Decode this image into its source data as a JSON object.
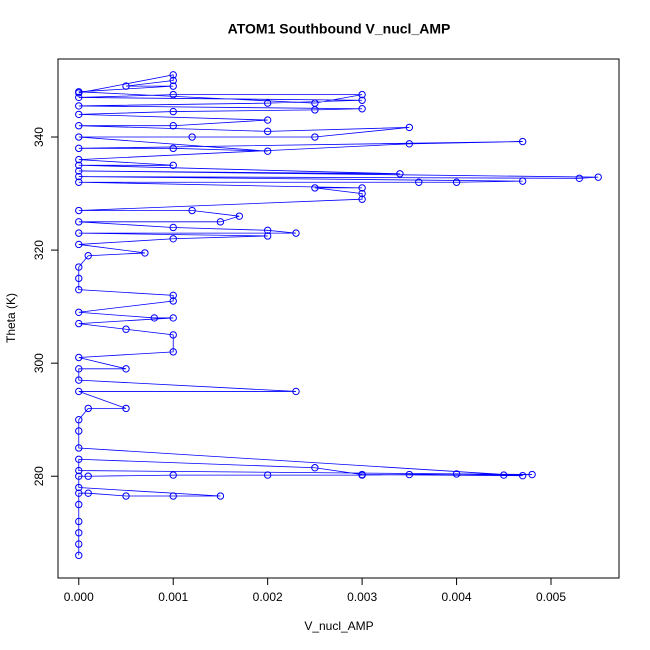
{
  "chart_data": {
    "type": "scatter",
    "title": "ATOM1 Southbound V_nucl_AMP",
    "x_label": "V_nucl_AMP",
    "y_label": "Theta (K)",
    "connect": true,
    "xlim": [
      -0.00022,
      0.00572
    ],
    "ylim": [
      262,
      353.8
    ],
    "xticks": [
      {
        "value": 0,
        "label": "0.000"
      },
      {
        "value": 0.001,
        "label": "0.001"
      },
      {
        "value": 0.002,
        "label": "0.002"
      },
      {
        "value": 0.003,
        "label": "0.003"
      },
      {
        "value": 0.004,
        "label": "0.004"
      },
      {
        "value": 0.005,
        "label": "0.005"
      }
    ],
    "yticks": [
      280,
      300,
      320,
      340
    ],
    "series": [
      {
        "color": "#0000ff",
        "x": [
          0,
          0,
          0,
          0,
          0,
          0,
          0.0001,
          0.0005,
          0.001,
          0.0015,
          0,
          0,
          0.0001,
          0.001,
          0.002,
          0.003,
          0.0035,
          0.004,
          0.0045,
          0.0048,
          0,
          0,
          0.0025,
          0.003,
          0.0047,
          0,
          0,
          0,
          0.0001,
          0.0005,
          0,
          0.0023,
          0,
          0,
          0.0005,
          0,
          0.001,
          0.001,
          0.0005,
          0,
          0.001,
          0.0008,
          0,
          0.001,
          0.001,
          0,
          0,
          0,
          0.0001,
          0.0007,
          0,
          0.001,
          0.002,
          0,
          0.0023,
          0.002,
          0.001,
          0,
          0.0015,
          0.0017,
          0.0012,
          0,
          0.003,
          0.003,
          0.0025,
          0.003,
          0,
          0.0036,
          0.004,
          0.0047,
          0,
          0.0053,
          0.0055,
          0,
          0.0034,
          0,
          0.001,
          0,
          0.0035,
          0.0047,
          0,
          0.001,
          0.002,
          0,
          0.0012,
          0.0025,
          0.0035,
          0.002,
          0,
          0.001,
          0.002,
          0,
          0.001,
          0.0025,
          0.003,
          0,
          0.002,
          0.003,
          0,
          0.001,
          0.003,
          0.0025,
          0,
          0.001,
          0.0005,
          0.001,
          0.001,
          0
        ],
        "y": [
          266,
          268,
          270,
          272,
          275,
          277,
          277,
          276.5,
          276.5,
          276.5,
          278,
          280,
          280,
          280.2,
          280.2,
          280.2,
          280.3,
          280.4,
          280.2,
          280.3,
          281,
          283,
          281.5,
          280.3,
          280.1,
          285,
          288,
          290,
          292,
          292,
          295,
          295,
          297,
          299,
          299,
          301,
          302,
          305,
          306,
          307,
          308,
          308,
          309,
          311,
          312,
          313,
          315,
          317,
          319,
          319.5,
          321,
          322,
          322.5,
          323,
          323,
          323.5,
          324,
          325,
          325,
          326,
          327,
          327,
          329,
          330,
          331,
          331,
          332,
          332,
          332,
          332.2,
          333,
          332.7,
          332.9,
          334,
          333.5,
          335,
          335,
          336,
          338.8,
          339.2,
          338,
          338,
          337.5,
          340,
          340,
          340,
          341.7,
          341,
          342,
          342,
          343,
          344,
          344.5,
          344.8,
          345,
          345.5,
          346,
          346.5,
          347,
          347.5,
          347.5,
          346,
          348,
          349,
          349,
          350,
          351,
          347.8
        ]
      }
    ]
  }
}
